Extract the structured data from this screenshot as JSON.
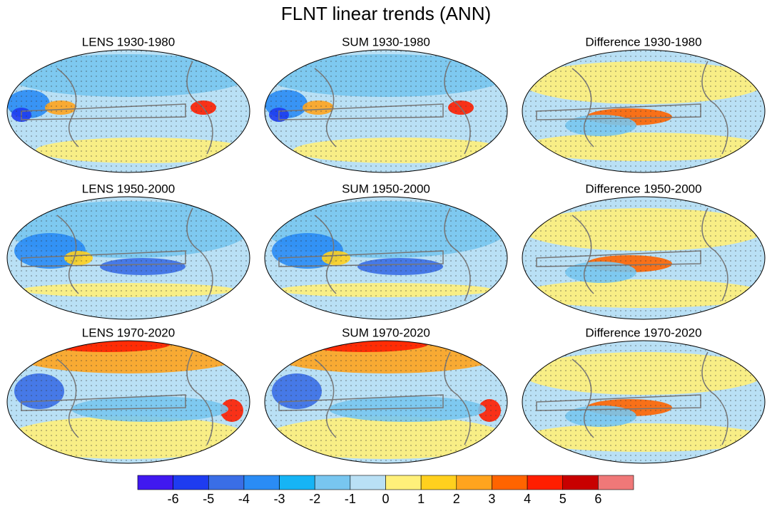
{
  "title": "FLNT linear trends (ANN)",
  "panels": [
    {
      "title": "LENS 1930-1980"
    },
    {
      "title": "SUM 1930-1980"
    },
    {
      "title": "Difference 1930-1980"
    },
    {
      "title": "LENS 1950-2000"
    },
    {
      "title": "SUM 1950-2000"
    },
    {
      "title": "Difference 1950-2000"
    },
    {
      "title": "LENS 1970-2020"
    },
    {
      "title": "SUM 1970-2020"
    },
    {
      "title": "Difference 1970-2020"
    }
  ],
  "colorbar": {
    "labels": [
      -6,
      -5,
      -4,
      -3,
      -2,
      -1,
      0,
      1,
      2,
      3,
      4,
      5,
      6
    ],
    "colors": [
      "#4018f0",
      "#1e3cf0",
      "#3a6ee6",
      "#2a8cf5",
      "#16b4f5",
      "#78c6f0",
      "#b9e0f5",
      "#fff07a",
      "#ffd01e",
      "#ffa41e",
      "#ff6400",
      "#ff1e00",
      "#c80000",
      "#f07878"
    ]
  }
}
